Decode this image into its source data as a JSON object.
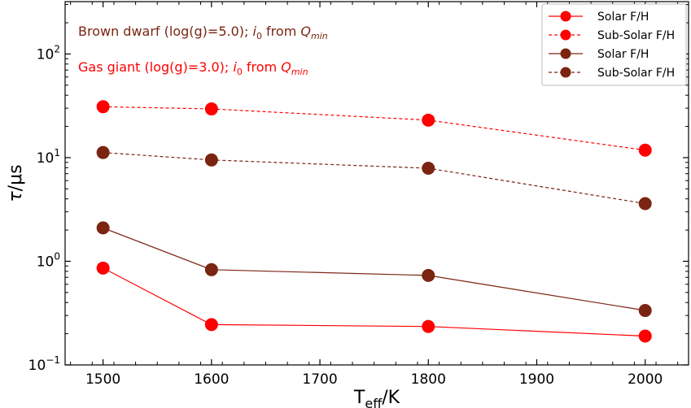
{
  "chart_data": {
    "type": "line",
    "x_label": {
      "main": "T",
      "sub": "eff",
      "unit": "/K"
    },
    "y_label": {
      "symbol": "τ",
      "unit": "/μs"
    },
    "x_ticks": [
      1500,
      1600,
      1700,
      1800,
      1900,
      2000
    ],
    "x_lim": [
      1465,
      2040
    ],
    "y_scale": "log",
    "y_ticks": [
      {
        "value": 0.1,
        "base": "10",
        "exp": "−1"
      },
      {
        "value": 1,
        "base": "10",
        "exp": "0"
      },
      {
        "value": 10,
        "base": "10",
        "exp": "1"
      },
      {
        "value": 100,
        "base": "10",
        "exp": "2"
      }
    ],
    "y_lim": [
      0.1,
      320
    ],
    "annotations": [
      {
        "prefix": "Brown dwarf (log(g)=5.0); ",
        "i": "i",
        "i_sub": "0",
        "mid": " from ",
        "q": "Q",
        "q_sub": "min",
        "color": "#7b2412"
      },
      {
        "prefix": "Gas giant (log(g)=3.0); ",
        "i": "i",
        "i_sub": "0",
        "mid": " from ",
        "q": "Q",
        "q_sub": "min",
        "color": "#ff0000"
      }
    ],
    "legend_position": "top-right",
    "series": [
      {
        "name": "Solar F/H",
        "color": "#ff0000",
        "dash": false,
        "x": [
          1500,
          1600,
          1800,
          2000
        ],
        "y": [
          0.86,
          0.245,
          0.235,
          0.19
        ]
      },
      {
        "name": "Sub-Solar F/H",
        "color": "#ff0000",
        "dash": true,
        "x": [
          1500,
          1600,
          1800,
          2000
        ],
        "y": [
          31,
          29.5,
          23,
          11.8
        ]
      },
      {
        "name": "Solar F/H",
        "color": "#7b2412",
        "dash": false,
        "x": [
          1500,
          1600,
          1800,
          2000
        ],
        "y": [
          2.1,
          0.83,
          0.73,
          0.335
        ]
      },
      {
        "name": "Sub-Solar F/H",
        "color": "#7b2412",
        "dash": true,
        "x": [
          1500,
          1600,
          1800,
          2000
        ],
        "y": [
          11.2,
          9.5,
          7.9,
          3.6
        ]
      }
    ]
  }
}
